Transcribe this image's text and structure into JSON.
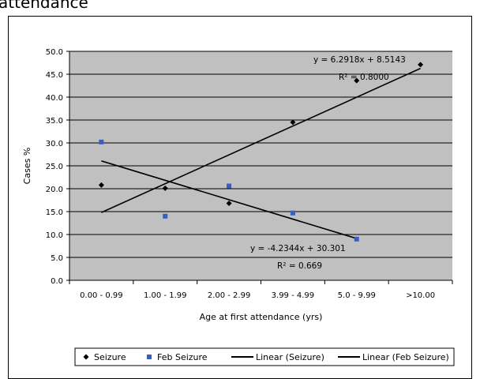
{
  "header": {
    "title": "attendance"
  },
  "chart_data": {
    "type": "scatter",
    "title": "",
    "xlabel": "Age at first attendance (yrs)",
    "ylabel": "Cases %",
    "categories": [
      "0.00 - 0.99",
      "1.00 - 1.99",
      "2.00 - 2.99",
      "3.99 - 4.99",
      "5.0 - 9.99",
      ">10.00"
    ],
    "ylim": [
      0,
      50
    ],
    "yticks": [
      "0.0",
      "5.0",
      "10.0",
      "15.0",
      "20.0",
      "25.0",
      "30.0",
      "35.0",
      "40.0",
      "45.0",
      "50.0"
    ],
    "grid": true,
    "plot_background": "#c0c0c0",
    "series": [
      {
        "name": "Seizure",
        "marker": "diamond",
        "color": "#000000",
        "values": [
          20.8,
          20.1,
          16.8,
          34.5,
          43.6,
          47.1
        ]
      },
      {
        "name": "Feb Seizure",
        "marker": "square",
        "color": "#3b5cc4",
        "values": [
          30.2,
          14.0,
          20.6,
          14.7,
          9.0
        ]
      }
    ],
    "trendlines": [
      {
        "name": "Linear (Seizure)",
        "slope": 6.2918,
        "intercept": 8.5143,
        "equation": "y = 6.2918x + 8.5143",
        "r2_label": "R² = 0.8000"
      },
      {
        "name": "Linear (Feb Seizure)",
        "slope": -4.2344,
        "intercept": 30.301,
        "equation": "y = -4.2344x + 30.301",
        "r2_label": "R² = 0.669"
      }
    ],
    "legend": {
      "placement": "bottom",
      "items": [
        "Seizure",
        "Feb Seizure",
        "Linear (Seizure)",
        "Linear (Feb Seizure)"
      ]
    }
  }
}
